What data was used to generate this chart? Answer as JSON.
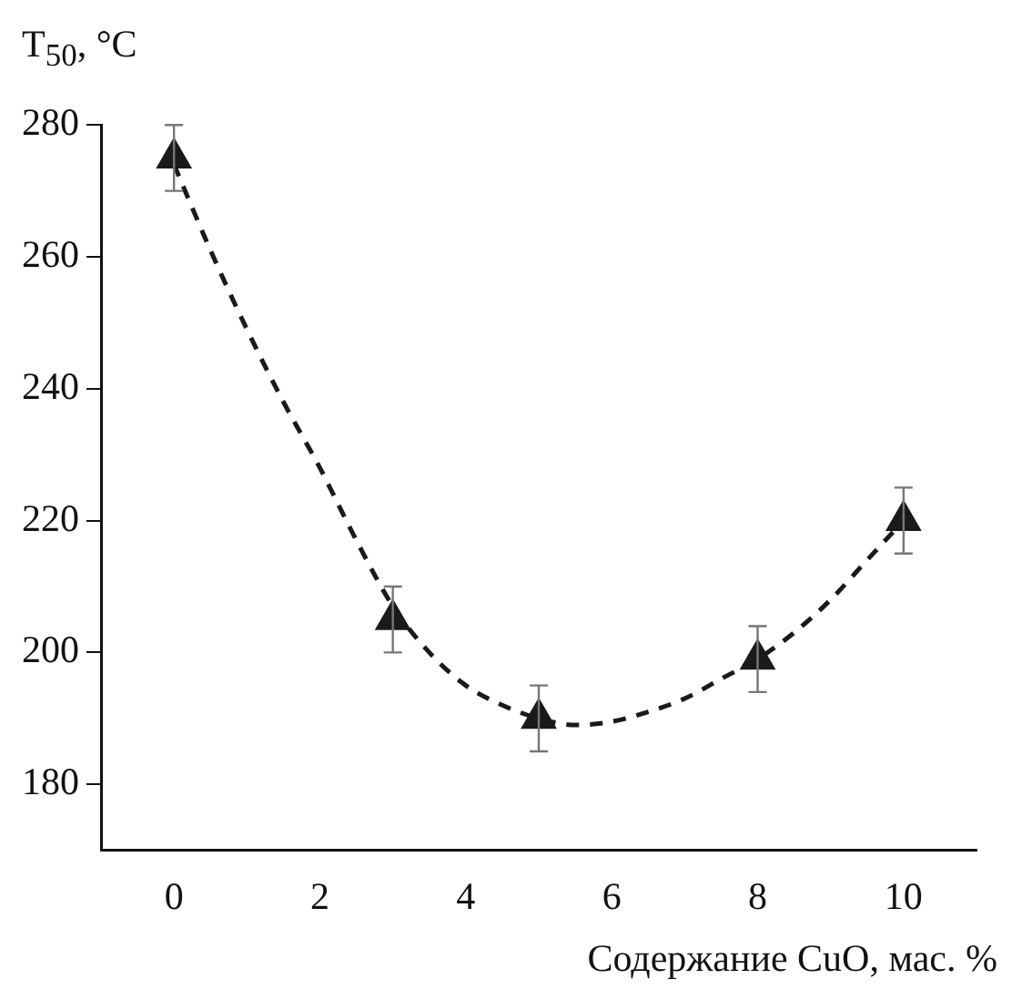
{
  "chart_data": {
    "type": "scatter",
    "xlabel": "Содержание CuO, мас. %",
    "ylabel": "T$_{50}$, °C",
    "xlim": [
      -1,
      11
    ],
    "xticks": [
      0,
      2,
      4,
      6,
      8,
      10
    ],
    "ylim": [
      170,
      280
    ],
    "yticks": [
      180,
      200,
      220,
      240,
      260,
      280
    ],
    "grid": false,
    "legend": false,
    "series": [
      {
        "type": "line",
        "color": "#1a1a1a",
        "line_style": "dashed",
        "marker": "none",
        "x": [
          0,
          0.5,
          1,
          1.5,
          2,
          2.5,
          3,
          3.5,
          4,
          4.5,
          5,
          5.5,
          6,
          6.5,
          7,
          7.5,
          8,
          8.5,
          9,
          9.5,
          10
        ],
        "values": [
          274,
          261,
          249,
          238,
          228,
          217,
          207,
          200,
          195,
          192,
          190,
          189,
          189.5,
          191,
          193,
          196,
          199,
          203,
          208,
          214,
          220
        ]
      },
      {
        "color": "#1a1a1a",
        "marker": "triangle",
        "x": [
          0,
          3,
          5,
          8,
          10
        ],
        "values": [
          275,
          205,
          190,
          199,
          220
        ],
        "errors": [
          5,
          5,
          5,
          5,
          5
        ]
      }
    ]
  }
}
